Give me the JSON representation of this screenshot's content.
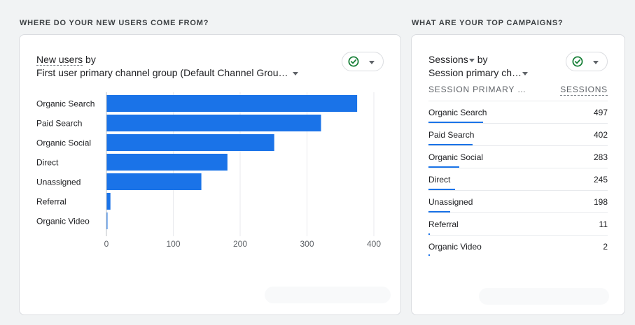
{
  "left": {
    "section_title": "WHERE DO YOUR NEW USERS COME FROM?",
    "metric": "New users",
    "by": "by",
    "dimension": "First user primary channel group (Default Channel Grou…",
    "compare_icon": "check-circle-icon"
  },
  "right": {
    "section_title": "WHAT ARE YOUR TOP CAMPAIGNS?",
    "metric": "Sessions",
    "by": "by",
    "dimension": "Session primary ch…",
    "compare_icon": "check-circle-icon",
    "col_dimension": "SESSION PRIMARY …",
    "col_metric": "SESSIONS",
    "rows": [
      {
        "label": "Organic Search",
        "value": "497",
        "num": 497
      },
      {
        "label": "Paid Search",
        "value": "402",
        "num": 402
      },
      {
        "label": "Organic Social",
        "value": "283",
        "num": 283
      },
      {
        "label": "Direct",
        "value": "245",
        "num": 245
      },
      {
        "label": "Unassigned",
        "value": "198",
        "num": 198
      },
      {
        "label": "Referral",
        "value": "11",
        "num": 11
      },
      {
        "label": "Organic Video",
        "value": "2",
        "num": 2
      }
    ]
  },
  "colors": {
    "bar": "#1a73e8",
    "check": "#188038",
    "grid": "#e8eaed"
  },
  "chart_data": {
    "type": "bar",
    "orientation": "horizontal",
    "categories": [
      "Organic Search",
      "Paid Search",
      "Organic Social",
      "Direct",
      "Unassigned",
      "Referral",
      "Organic Video"
    ],
    "values": [
      375,
      321,
      251,
      181,
      142,
      6,
      1
    ],
    "xlim": [
      0,
      400
    ],
    "xticks": [
      0,
      100,
      200,
      300,
      400
    ],
    "grid": true
  }
}
